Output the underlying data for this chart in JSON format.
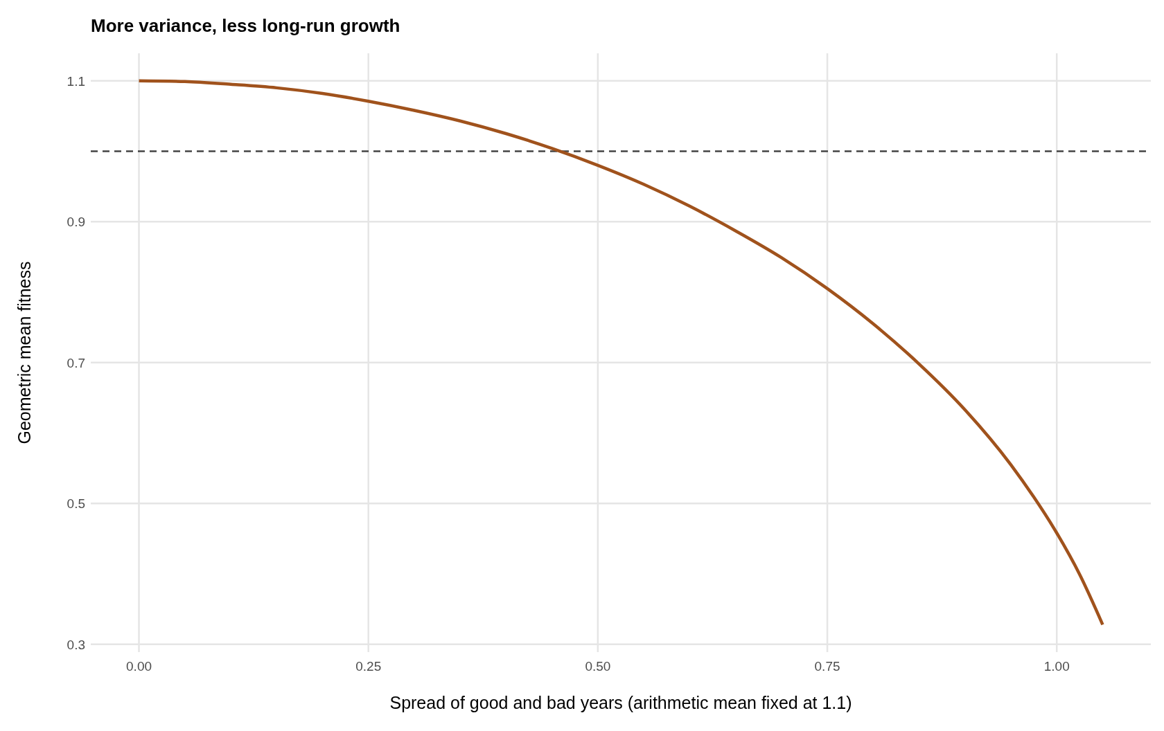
{
  "chart_data": {
    "type": "line",
    "title": "More variance, less long-run growth",
    "xlabel": "Spread of good and bad years (arithmetic mean fixed at 1.1)",
    "ylabel": "Geometric mean fitness",
    "x": [
      0,
      0.05,
      0.1,
      0.15,
      0.2,
      0.25,
      0.3,
      0.35,
      0.4,
      0.45,
      0.5,
      0.55,
      0.6,
      0.65,
      0.7,
      0.75,
      0.8,
      0.85,
      0.9,
      0.95,
      0.975,
      1.0,
      1.025,
      1.05
    ],
    "series": [
      {
        "color": "#a0521c",
        "values": [
          1.1,
          1.099,
          1.095,
          1.09,
          1.082,
          1.071,
          1.058,
          1.043,
          1.025,
          1.004,
          0.98,
          0.953,
          0.922,
          0.887,
          0.849,
          0.805,
          0.755,
          0.698,
          0.633,
          0.555,
          0.509,
          0.458,
          0.399,
          0.328
        ]
      }
    ],
    "xlim": [
      -0.0525,
      1.1025
    ],
    "xticks": [
      {
        "value": 0,
        "label": "0.00"
      },
      {
        "value": 0.25,
        "label": "0.25"
      },
      {
        "value": 0.5,
        "label": "0.50"
      },
      {
        "value": 0.75,
        "label": "0.75"
      },
      {
        "value": 1,
        "label": "1.00"
      }
    ],
    "ylim": [
      0.289,
      1.139
    ],
    "yticks": [
      0.3,
      0.5,
      0.7,
      0.9,
      1.1
    ],
    "ref_lines": [
      {
        "axis": "y",
        "value": 1.0,
        "color": "#444444",
        "line_style": "dashed"
      }
    ],
    "grid": true,
    "marker": "none",
    "line_style": "solid"
  }
}
